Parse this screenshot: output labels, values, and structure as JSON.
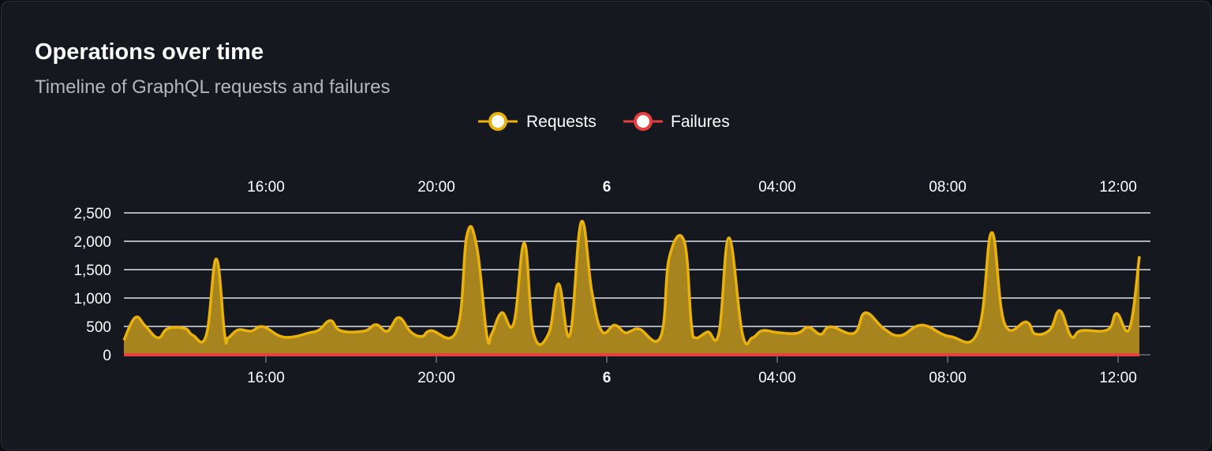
{
  "card": {
    "title": "Operations over time",
    "subtitle": "Timeline of GraphQL requests and failures"
  },
  "chart_data": {
    "type": "area",
    "legend_position": "top-center",
    "grid": true,
    "x_range": [
      "5 12:40",
      "6 12:31"
    ],
    "ylim": [
      0,
      2500
    ],
    "y_ticks": [
      "0",
      "500",
      "1,000",
      "1,500",
      "2,000",
      "2,500"
    ],
    "y_tick_values": [
      0,
      500,
      1000,
      1500,
      2000,
      2500
    ],
    "x_ticks": [
      {
        "at": "5 16:00",
        "label": "16:00",
        "bold": false
      },
      {
        "at": "5 20:00",
        "label": "20:00",
        "bold": false
      },
      {
        "at": "6 00:00",
        "label": "6",
        "bold": true
      },
      {
        "at": "6 04:00",
        "label": "04:00",
        "bold": false
      },
      {
        "at": "6 08:00",
        "label": "08:00",
        "bold": false
      },
      {
        "at": "6 12:00",
        "label": "12:00",
        "bold": false
      }
    ],
    "x": [
      "5 12:40",
      "5 12:56",
      "5 13:10",
      "5 13:28",
      "5 13:42",
      "5 14:06",
      "5 14:17",
      "5 14:36",
      "5 14:50",
      "5 15:02",
      "5 15:07",
      "5 15:21",
      "5 15:39",
      "5 15:56",
      "5 16:26",
      "5 17:03",
      "5 17:15",
      "5 17:31",
      "5 17:45",
      "5 18:18",
      "5 18:35",
      "5 18:51",
      "5 19:07",
      "5 19:24",
      "5 19:40",
      "5 19:52",
      "5 20:29",
      "5 20:43",
      "5 20:57",
      "5 21:11",
      "5 21:18",
      "5 21:32",
      "5 21:49",
      "5 22:04",
      "5 22:17",
      "5 22:38",
      "5 22:52",
      "5 23:08",
      "5 23:24",
      "5 23:39",
      "5 23:53",
      "6 00:11",
      "6 00:25",
      "6 00:34",
      "6 00:46",
      "6 01:16",
      "6 01:28",
      "6 01:49",
      "6 01:59",
      "6 02:05",
      "6 02:22",
      "6 02:38",
      "6 02:52",
      "6 03:11",
      "6 03:25",
      "6 03:39",
      "6 04:00",
      "6 04:28",
      "6 04:44",
      "6 05:01",
      "6 05:15",
      "6 05:48",
      "6 06:04",
      "6 06:30",
      "6 06:53",
      "6 07:24",
      "6 08:03",
      "6 08:43",
      "6 09:02",
      "6 09:20",
      "6 09:51",
      "6 10:03",
      "6 10:24",
      "6 10:38",
      "6 10:54",
      "6 11:08",
      "6 11:45",
      "6 11:58",
      "6 12:16",
      "6 12:30"
    ],
    "series": [
      {
        "name": "Requests",
        "color": "#e8b10b",
        "fill": "#a8841f",
        "values": [
          255,
          657,
          510,
          300,
          463,
          463,
          347,
          347,
          1690,
          347,
          300,
          440,
          417,
          495,
          310,
          393,
          440,
          602,
          426,
          417,
          532,
          417,
          657,
          403,
          324,
          426,
          440,
          2107,
          1898,
          347,
          370,
          740,
          555,
          1968,
          370,
          370,
          1250,
          347,
          2338,
          1111,
          417,
          523,
          393,
          417,
          454,
          324,
          1713,
          2000,
          555,
          300,
          403,
          393,
          2060,
          370,
          300,
          426,
          393,
          380,
          486,
          361,
          495,
          380,
          740,
          463,
          338,
          523,
          324,
          417,
          2153,
          555,
          578,
          370,
          440,
          778,
          324,
          426,
          440,
          727,
          463,
          1736
        ]
      },
      {
        "name": "Failures",
        "color": "#e5403f",
        "values": [
          0,
          0,
          0,
          0,
          0,
          0,
          0,
          0,
          0,
          0,
          0,
          0,
          0,
          0,
          0,
          0,
          0,
          0,
          0,
          0,
          0,
          0,
          0,
          0,
          0,
          0,
          0,
          0,
          0,
          0,
          0,
          0,
          0,
          0,
          0,
          0,
          0,
          0,
          0,
          0,
          0,
          0,
          0,
          0,
          0,
          0,
          0,
          0,
          0,
          0,
          0,
          0,
          0,
          0,
          0,
          0,
          0,
          0,
          0,
          0,
          0,
          0,
          0,
          0,
          0,
          0,
          0,
          0,
          0,
          0,
          0,
          0,
          0,
          0,
          0,
          0,
          0,
          0,
          0,
          0
        ]
      }
    ]
  }
}
